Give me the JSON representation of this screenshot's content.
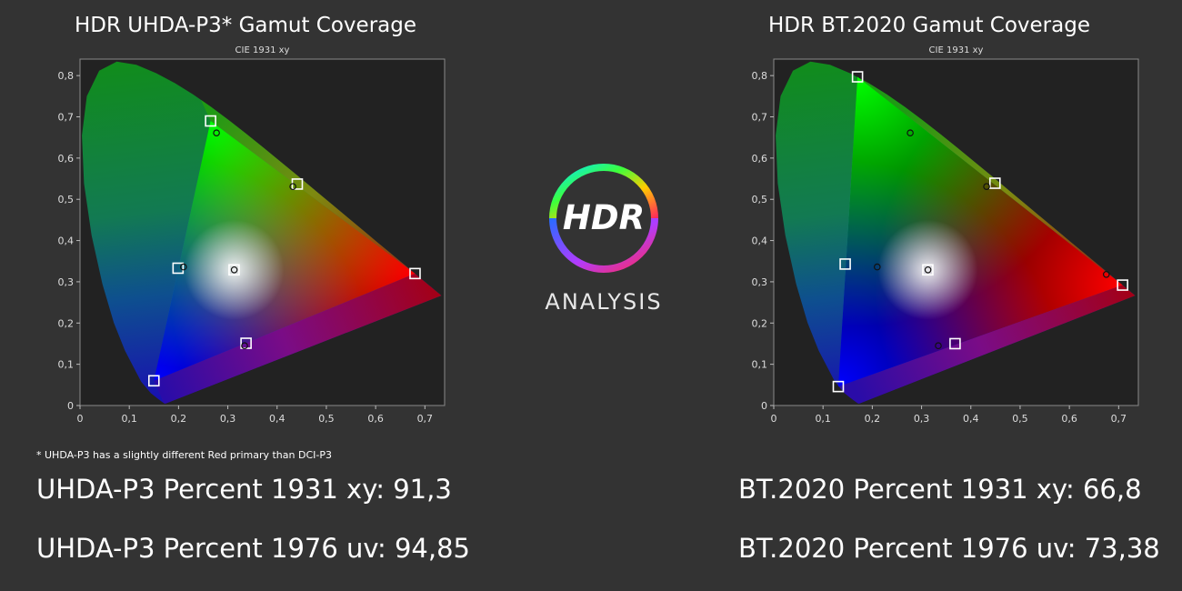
{
  "titles": {
    "left": "HDR UHDA-P3* Gamut Coverage",
    "right": "HDR BT.2020  Gamut Coverage"
  },
  "note": "* UHDA-P3 has a slightly different Red primary than DCI-P3",
  "stats": {
    "left_1931": "UHDA-P3 Percent 1931 xy: 91,3",
    "left_1976": "UHDA-P3 Percent 1976 uv: 94,85",
    "right_1931": "BT.2020 Percent 1931 xy: 66,8",
    "right_1976": "BT.2020 Percent 1976 uv: 73,38"
  },
  "logo": {
    "mark": "HDR",
    "word": "ANALYSIS"
  },
  "chart_data": [
    {
      "type": "scatter",
      "title": "CIE 1931 xy",
      "xlim": [
        0,
        0.74
      ],
      "ylim": [
        0,
        0.84
      ],
      "x_ticks": [
        "0",
        "0,1",
        "0,2",
        "0,3",
        "0,4",
        "0,5",
        "0,6",
        "0,7"
      ],
      "y_ticks": [
        "0",
        "0,1",
        "0,2",
        "0,3",
        "0,4",
        "0,5",
        "0,6",
        "0,7",
        "0,8"
      ],
      "grid": false,
      "target_points": [
        {
          "label": "red",
          "x": 0.68,
          "y": 0.32
        },
        {
          "label": "green",
          "x": 0.265,
          "y": 0.69
        },
        {
          "label": "blue",
          "x": 0.15,
          "y": 0.06
        },
        {
          "label": "white",
          "x": 0.3127,
          "y": 0.329
        },
        {
          "label": "cyan",
          "x": 0.199,
          "y": 0.333
        },
        {
          "label": "yellow",
          "x": 0.441,
          "y": 0.537
        },
        {
          "label": "magenta",
          "x": 0.337,
          "y": 0.151
        }
      ],
      "measured_points": [
        {
          "label": "green",
          "x": 0.277,
          "y": 0.661
        },
        {
          "label": "yellow",
          "x": 0.432,
          "y": 0.531
        },
        {
          "label": "cyan",
          "x": 0.21,
          "y": 0.336
        },
        {
          "label": "white",
          "x": 0.313,
          "y": 0.329
        },
        {
          "label": "magenta",
          "x": 0.334,
          "y": 0.145
        }
      ]
    },
    {
      "type": "scatter",
      "title": "CIE 1931 xy",
      "xlim": [
        0,
        0.74
      ],
      "ylim": [
        0,
        0.84
      ],
      "x_ticks": [
        "0",
        "0,1",
        "0,2",
        "0,3",
        "0,4",
        "0,5",
        "0,6",
        "0,7"
      ],
      "y_ticks": [
        "0",
        "0,1",
        "0,2",
        "0,3",
        "0,4",
        "0,5",
        "0,6",
        "0,7",
        "0,8"
      ],
      "grid": false,
      "target_points": [
        {
          "label": "red",
          "x": 0.708,
          "y": 0.292
        },
        {
          "label": "green",
          "x": 0.17,
          "y": 0.797
        },
        {
          "label": "blue",
          "x": 0.131,
          "y": 0.046
        },
        {
          "label": "white",
          "x": 0.3127,
          "y": 0.329
        },
        {
          "label": "cyan",
          "x": 0.145,
          "y": 0.343
        },
        {
          "label": "yellow",
          "x": 0.449,
          "y": 0.539
        },
        {
          "label": "magenta",
          "x": 0.368,
          "y": 0.15
        }
      ],
      "measured_points": [
        {
          "label": "red",
          "x": 0.675,
          "y": 0.318
        },
        {
          "label": "green",
          "x": 0.277,
          "y": 0.661
        },
        {
          "label": "yellow",
          "x": 0.432,
          "y": 0.531
        },
        {
          "label": "cyan",
          "x": 0.21,
          "y": 0.336
        },
        {
          "label": "white",
          "x": 0.313,
          "y": 0.329
        },
        {
          "label": "magenta",
          "x": 0.334,
          "y": 0.145
        }
      ]
    }
  ]
}
